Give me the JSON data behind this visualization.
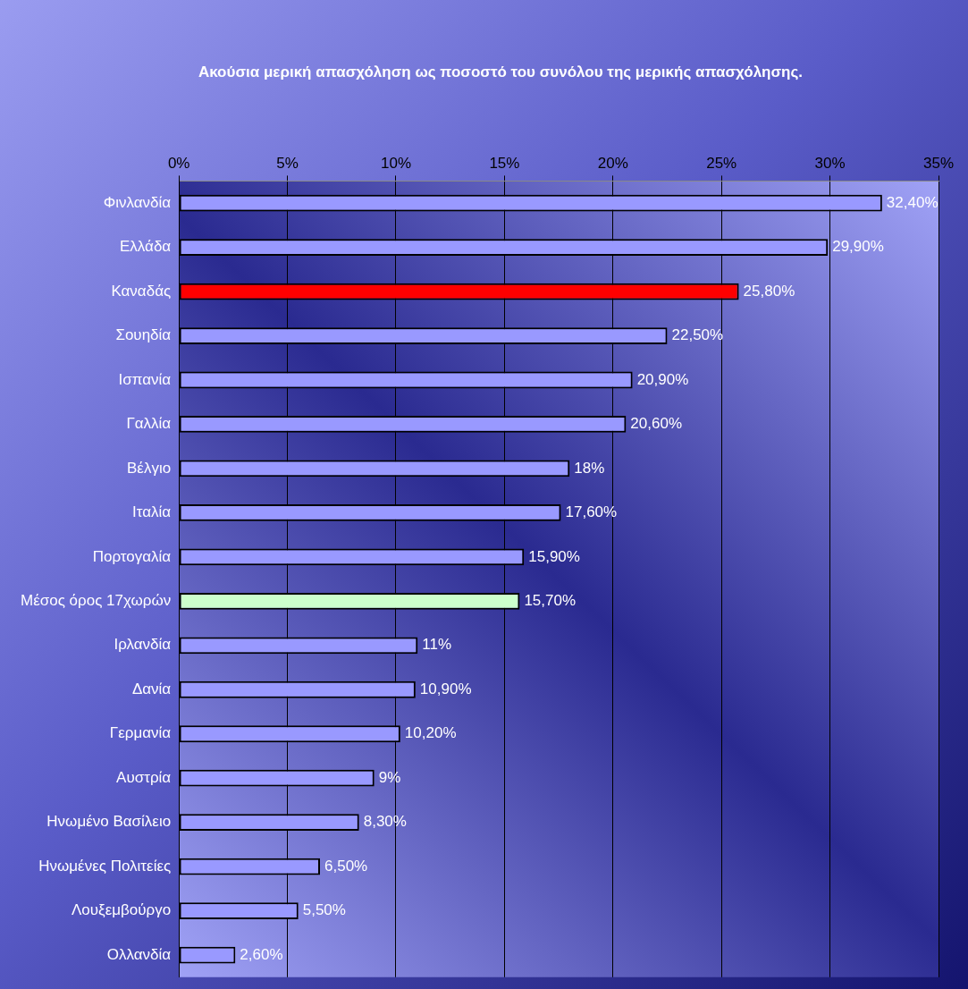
{
  "chart_data": {
    "type": "bar",
    "orientation": "horizontal",
    "title": "Ακούσια μερική απασχόληση ως ποσοστό του συνόλου της μερικής απασχόλησης.",
    "categories": [
      "Φινλανδία",
      "Ελλάδα",
      "Καναδάς",
      "Σουηδία",
      "Ισπανία",
      "Γαλλία",
      "Βέλγιο",
      "Ιταλία",
      "Πορτογαλία",
      "Μέσος όρος 17χωρών",
      "Ιρλανδία",
      "Δανία",
      "Γερμανία",
      "Αυστρία",
      "Ηνωμένο Βασίλειο",
      "Ηνωμένες Πολιτείες",
      "Λουξεμβούργο",
      "Ολλανδία"
    ],
    "values": [
      32.4,
      29.9,
      25.8,
      22.5,
      20.9,
      20.6,
      18,
      17.6,
      15.9,
      15.7,
      11,
      10.9,
      10.2,
      9,
      8.3,
      6.5,
      5.5,
      2.6
    ],
    "colors": [
      "#9999ff",
      "#9999ff",
      "#ff0000",
      "#9999ff",
      "#9999ff",
      "#9999ff",
      "#9999ff",
      "#9999ff",
      "#9999ff",
      "#ccffcc",
      "#9999ff",
      "#9999ff",
      "#9999ff",
      "#9999ff",
      "#9999ff",
      "#9999ff",
      "#9999ff",
      "#9999ff"
    ],
    "value_labels": [
      "32,40%",
      "29,90%",
      "25,80%",
      "22,50%",
      "20,90%",
      "20,60%",
      "18%",
      "17,60%",
      "15,90%",
      "15,70%",
      "11%",
      "10,90%",
      "10,20%",
      "9%",
      "8,30%",
      "6,50%",
      "5,50%",
      "2,60%"
    ],
    "xlim": [
      0,
      35
    ],
    "xticks": [
      {
        "value": 0,
        "label": "0%"
      },
      {
        "value": 5,
        "label": "5%"
      },
      {
        "value": 10,
        "label": "10%"
      },
      {
        "value": 15,
        "label": "15%"
      },
      {
        "value": 20,
        "label": "20%"
      },
      {
        "value": 25,
        "label": "25%"
      },
      {
        "value": 30,
        "label": "30%"
      },
      {
        "value": 35,
        "label": "35%"
      }
    ],
    "grid": "x",
    "legend": false
  }
}
